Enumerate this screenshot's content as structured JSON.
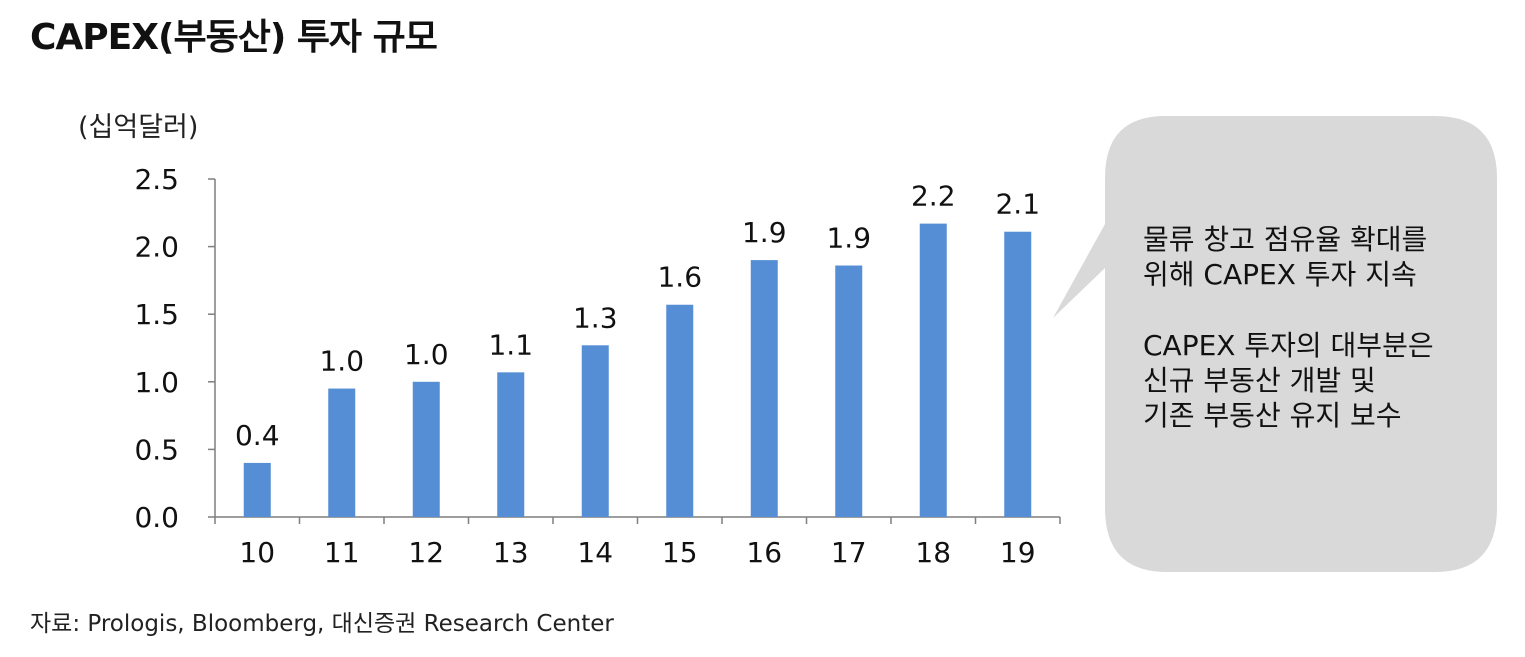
{
  "title": "CAPEX(부동산) 투자 규모",
  "unit_label": "(십억달러)",
  "source": "자료: Prologis, Bloomberg, 대신증권 Research Center",
  "callout": {
    "lines_1": [
      "물류 창고 점유율 확대를",
      "위해 CAPEX 투자 지속"
    ],
    "lines_2": [
      "CAPEX 투자의 대부분은",
      "신규 부동산 개발 및",
      "기존 부동산 유지 보수"
    ]
  },
  "chart_data": {
    "type": "bar",
    "categories": [
      "10",
      "11",
      "12",
      "13",
      "14",
      "15",
      "16",
      "17",
      "18",
      "19"
    ],
    "values": [
      0.4,
      0.95,
      1.0,
      1.07,
      1.27,
      1.57,
      1.9,
      1.86,
      2.17,
      2.11
    ],
    "data_labels": [
      "0.4",
      "1.0",
      "1.0",
      "1.1",
      "1.3",
      "1.6",
      "1.9",
      "1.9",
      "2.2",
      "2.1"
    ],
    "yticks": [
      "0.0",
      "0.5",
      "1.0",
      "1.5",
      "2.0",
      "2.5"
    ],
    "ylim": [
      0,
      2.5
    ],
    "bar_color": "#558ed5",
    "grid": false
  }
}
